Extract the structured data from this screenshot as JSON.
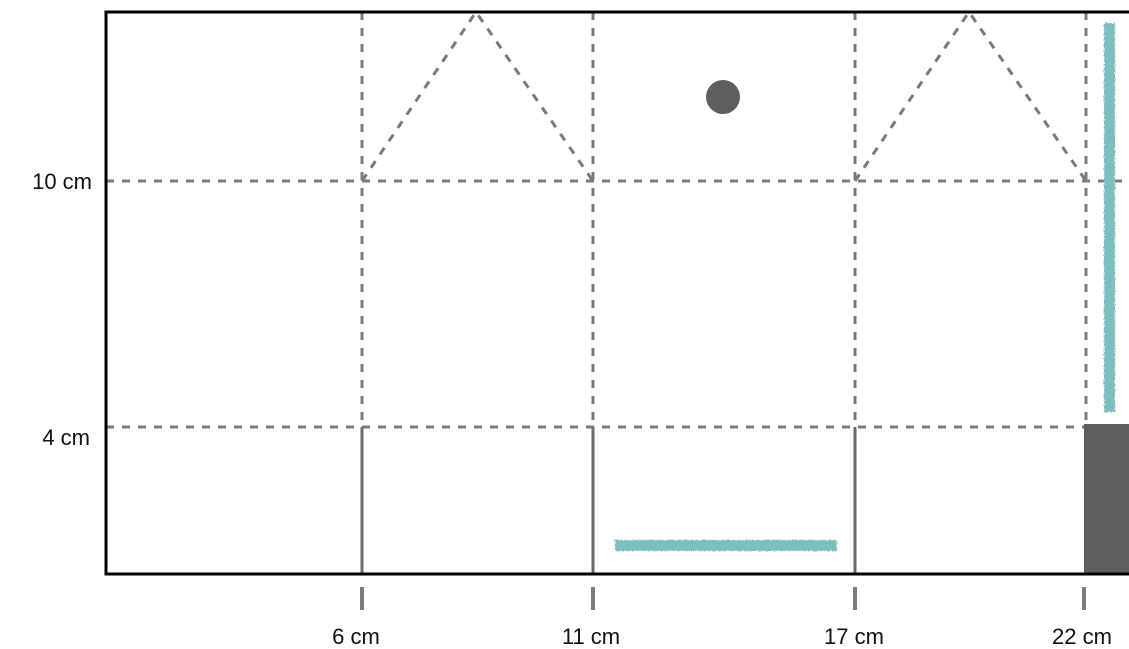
{
  "diagram": {
    "x_labels": [
      "6 cm",
      "11 cm",
      "17 cm",
      "22 cm"
    ],
    "y_labels": [
      "10 cm",
      "4 cm"
    ]
  },
  "colors": {
    "frame": "#000000",
    "dashed_guides": "#7a7a7a",
    "solid_folds": "#6b6b6b",
    "dark_fill": "#5e5e5e",
    "teal_strip": "#7dbfbd",
    "text": "#111111"
  }
}
